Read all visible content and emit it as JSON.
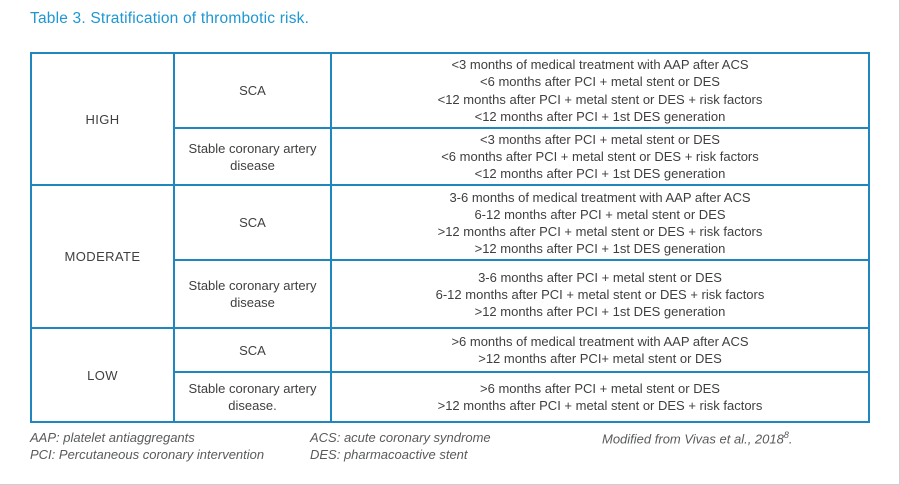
{
  "page": {
    "title": "Table 3. Stratification of thrombotic risk."
  },
  "colors": {
    "accent_blue": "#1e97d3",
    "border_blue": "#1f87bd",
    "text_dark": "#3f3f3f",
    "footnote_gray": "#585a5c"
  },
  "table": {
    "sections": [
      {
        "risk": "HIGH",
        "rows": [
          {
            "category": "SCA",
            "criteria": [
              "<3 months of medical treatment with AAP after ACS",
              "<6 months after PCI + metal stent or DES",
              "<12 months after PCI + metal stent or DES + risk factors",
              "<12 months after PCI + 1st DES generation"
            ]
          },
          {
            "category": "Stable coronary artery disease",
            "criteria": [
              "<3 months after PCI + metal stent or DES",
              "<6 months after PCI + metal stent or DES + risk factors",
              "<12 months after PCI + 1st DES generation"
            ]
          }
        ]
      },
      {
        "risk": "MODERATE",
        "rows": [
          {
            "category": "SCA",
            "criteria": [
              "3-6 months of medical treatment with AAP after ACS",
              "6-12 months after PCI + metal stent or DES",
              ">12 months after PCI + metal stent or DES + risk factors",
              ">12 months after PCI + 1st DES generation"
            ]
          },
          {
            "category": "Stable coronary artery disease",
            "criteria": [
              "3-6 months after PCI + metal stent or DES",
              "6-12 months after PCI + metal stent or DES + risk factors",
              ">12 months after PCI + 1st DES generation"
            ]
          }
        ]
      },
      {
        "risk": "LOW",
        "rows": [
          {
            "category": "SCA",
            "criteria": [
              ">6 months of medical treatment with AAP after ACS",
              ">12 months after PCI+ metal stent or DES"
            ]
          },
          {
            "category": "Stable coronary artery disease.",
            "criteria": [
              ">6 months after PCI + metal stent or DES",
              ">12 months after PCI + metal stent or DES + risk factors"
            ]
          }
        ]
      }
    ]
  },
  "footnotes": {
    "col1": [
      "AAP: platelet antiaggregants",
      "PCI: Percutaneous coronary intervention"
    ],
    "col2": [
      "ACS: acute coronary syndrome",
      "DES: pharmacoactive stent"
    ],
    "attribution": {
      "text": "Modified from Vivas et al., 2018",
      "superscript": "8",
      "suffix": "."
    }
  }
}
